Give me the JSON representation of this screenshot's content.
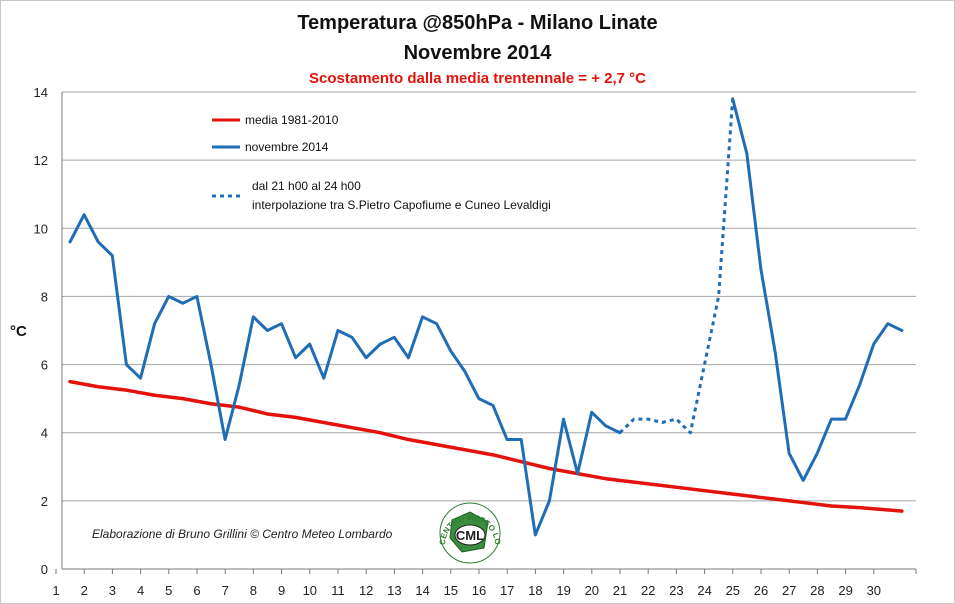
{
  "chart_data": {
    "type": "line",
    "title": "Temperatura @850hPa - Milano Linate",
    "subtitle": "Novembre 2014",
    "note": "Scostamento dalla media trentennale = + 2,7 °C",
    "ylabel": "°C",
    "xlabel": "",
    "xlim": [
      1,
      30.5
    ],
    "ylim": [
      0,
      14
    ],
    "yticks": [
      0,
      2,
      4,
      6,
      8,
      10,
      12,
      14
    ],
    "xticks": [
      1,
      2,
      3,
      4,
      5,
      6,
      7,
      8,
      9,
      10,
      11,
      12,
      13,
      14,
      15,
      16,
      17,
      18,
      19,
      20,
      21,
      22,
      23,
      24,
      25,
      26,
      27,
      28,
      29,
      30
    ],
    "grid": true,
    "legend_placement": "top-left",
    "series": [
      {
        "name": "media 1981-2010",
        "color": "#e3120b",
        "style": "solid",
        "x": [
          1,
          2,
          3,
          4,
          5,
          6,
          7,
          8,
          9,
          10,
          11,
          12,
          13,
          14,
          15,
          16,
          17,
          18,
          19,
          20,
          21,
          22,
          23,
          24,
          25,
          26,
          27,
          28,
          29,
          30.5
        ],
        "values": [
          5.5,
          5.35,
          5.25,
          5.1,
          5.0,
          4.85,
          4.75,
          4.55,
          4.45,
          4.3,
          4.15,
          4.0,
          3.8,
          3.65,
          3.5,
          3.35,
          3.15,
          2.95,
          2.8,
          2.65,
          2.55,
          2.45,
          2.35,
          2.25,
          2.15,
          2.05,
          1.95,
          1.85,
          1.8,
          1.7
        ]
      },
      {
        "name": "novembre 2014",
        "color": "#1f6db5",
        "style": "solid",
        "x": [
          1,
          1.5,
          2,
          2.5,
          3,
          3.5,
          4,
          4.5,
          5,
          5.5,
          6,
          6.5,
          7,
          7.5,
          8,
          8.5,
          9,
          9.5,
          10,
          10.5,
          11,
          11.5,
          12,
          12.5,
          13,
          13.5,
          14,
          14.5,
          15,
          15.5,
          16,
          16.5,
          17,
          17.5,
          18,
          18.5,
          19,
          19.5,
          20,
          20.5
        ],
        "values": [
          9.6,
          10.4,
          9.6,
          9.2,
          6.0,
          5.6,
          7.2,
          8.0,
          7.8,
          8.0,
          6.0,
          3.8,
          5.4,
          7.4,
          7.0,
          7.2,
          6.2,
          6.6,
          5.6,
          7.0,
          6.8,
          6.2,
          6.6,
          6.8,
          6.2,
          7.4,
          7.2,
          6.4,
          5.8,
          5.0,
          4.8,
          3.8,
          3.8,
          1.0,
          2.0,
          4.4,
          2.8,
          4.6,
          4.2,
          4.0
        ]
      },
      {
        "name": "dal 21 h00 al 24 h00",
        "name_line2": "interpolazione tra S.Pietro Capofiume e Cuneo Levaldigi",
        "color": "#1f6db5",
        "style": "dotted",
        "x": [
          20.5,
          21,
          21.5,
          22,
          22.5,
          23,
          23.5,
          24,
          24.5
        ],
        "values": [
          4.0,
          4.4,
          4.4,
          4.3,
          4.4,
          4.0,
          6.0,
          8.0,
          13.8
        ]
      },
      {
        "name": "",
        "color": "#1f6db5",
        "style": "solid",
        "x": [
          24.5,
          25,
          25.5,
          26,
          26.5,
          27,
          27.5,
          28,
          28.5,
          29,
          29.5,
          30,
          30.5
        ],
        "values": [
          13.8,
          12.2,
          8.8,
          6.4,
          3.4,
          2.6,
          3.4,
          4.4,
          4.4,
          5.4,
          6.6,
          7.2,
          7.0
        ]
      }
    ]
  },
  "credit": "Elaborazione di Bruno Grillini © Centro Meteo Lombardo",
  "logo": {
    "ring_text": "CENTRO METEO LOMBARDO",
    "center_text": "CML"
  }
}
